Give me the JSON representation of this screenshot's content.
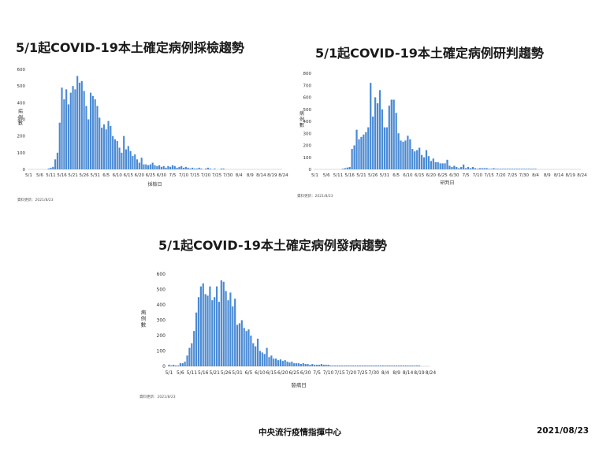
{
  "footer": {
    "org": "中央流行疫情指揮中心",
    "date": "2021/08/23"
  },
  "chart_data": [
    {
      "type": "bar",
      "title": "5/1起COVID-19本土確定病例採檢趨勢",
      "xlabel": "採檢日",
      "ylabel": "病例數",
      "ylim": [
        0,
        600
      ],
      "yticks": [
        0,
        100,
        200,
        300,
        400,
        500,
        600
      ],
      "xticks": [
        "5/1",
        "5/6",
        "5/11",
        "5/16",
        "5/21",
        "5/26",
        "5/31",
        "6/5",
        "6/10",
        "6/15",
        "6/20",
        "6/25",
        "6/30",
        "7/5",
        "7/10",
        "7/15",
        "7/20",
        "7/25",
        "7/30",
        "8/4",
        "8/9",
        "8/14",
        "8/19",
        "8/24"
      ],
      "note": "資料更新：2021/8/23",
      "color": "#4a8ad4",
      "values": [
        0,
        0,
        0,
        0,
        0,
        0,
        0,
        0,
        0,
        5,
        10,
        15,
        60,
        100,
        280,
        490,
        420,
        480,
        390,
        460,
        500,
        480,
        560,
        520,
        530,
        470,
        380,
        300,
        460,
        440,
        420,
        380,
        310,
        250,
        270,
        240,
        290,
        260,
        200,
        180,
        170,
        130,
        100,
        200,
        120,
        140,
        110,
        80,
        90,
        60,
        40,
        70,
        30,
        30,
        25,
        30,
        40,
        25,
        20,
        25,
        15,
        20,
        10,
        20,
        15,
        25,
        20,
        10,
        15,
        20,
        10,
        15,
        10,
        5,
        10,
        5,
        5,
        10,
        5,
        0,
        5,
        10,
        5,
        0,
        5,
        0,
        0,
        5,
        5,
        0,
        0,
        0,
        0,
        0,
        0,
        0,
        0,
        0,
        0,
        0,
        0,
        0,
        0,
        0,
        0,
        0,
        0,
        0,
        0,
        0,
        0,
        0,
        0,
        0,
        0
      ]
    },
    {
      "type": "bar",
      "title": "5/1起COVID-19本土確定病例研判趨勢",
      "xlabel": "研判日",
      "ylabel": "病例數",
      "ylim": [
        0,
        800
      ],
      "yticks": [
        0,
        100,
        200,
        300,
        400,
        500,
        600,
        700,
        800
      ],
      "xticks": [
        "5/1",
        "5/6",
        "5/11",
        "5/16",
        "5/21",
        "5/26",
        "5/31",
        "6/5",
        "6/10",
        "6/15",
        "6/20",
        "6/25",
        "6/30",
        "7/5",
        "7/10",
        "7/15",
        "7/20",
        "7/25",
        "7/30",
        "8/4",
        "8/9",
        "8/14",
        "8/19",
        "8/24"
      ],
      "note": "資料更新：2021/8/23",
      "color": "#4a8ad4",
      "values": [
        0,
        0,
        0,
        0,
        0,
        0,
        0,
        0,
        0,
        0,
        0,
        0,
        5,
        10,
        15,
        20,
        170,
        200,
        330,
        250,
        270,
        290,
        310,
        350,
        720,
        440,
        600,
        550,
        660,
        500,
        350,
        350,
        530,
        580,
        580,
        470,
        300,
        240,
        230,
        240,
        280,
        250,
        170,
        150,
        160,
        180,
        120,
        100,
        160,
        110,
        70,
        90,
        60,
        60,
        50,
        50,
        50,
        80,
        30,
        20,
        30,
        20,
        10,
        20,
        40,
        10,
        20,
        10,
        20,
        10,
        5,
        10,
        10,
        10,
        10,
        5,
        5,
        10,
        5,
        5,
        5,
        5,
        5,
        5,
        5,
        5,
        5,
        5,
        5,
        5,
        5,
        5,
        5,
        5,
        5,
        5,
        0,
        0,
        0,
        0,
        0,
        0,
        0,
        0,
        0,
        0,
        0,
        0,
        0,
        0,
        0,
        0,
        0,
        0,
        0
      ]
    },
    {
      "type": "bar",
      "title": "5/1起COVID-19本土確定病例發病趨勢",
      "xlabel": "發病日",
      "ylabel": "病例數",
      "ylim": [
        0,
        600
      ],
      "yticks": [
        0,
        100,
        200,
        300,
        400,
        500,
        600
      ],
      "xticks": [
        "5/1",
        "5/6",
        "5/11",
        "5/16",
        "5/21",
        "5/26",
        "5/31",
        "6/5",
        "6/10",
        "6/15",
        "6/20",
        "6/25",
        "6/30",
        "7/5",
        "7/10",
        "7/15",
        "7/20",
        "7/25",
        "7/30",
        "8/4",
        "8/9",
        "8/14",
        "8/19",
        "8/24"
      ],
      "note": "資料更新：2021/8/23",
      "color": "#4a8ad4",
      "values": [
        10,
        5,
        10,
        5,
        5,
        20,
        20,
        30,
        70,
        120,
        150,
        230,
        350,
        450,
        520,
        540,
        470,
        460,
        520,
        430,
        450,
        520,
        420,
        560,
        550,
        490,
        430,
        480,
        390,
        440,
        270,
        280,
        300,
        250,
        230,
        240,
        200,
        150,
        130,
        180,
        100,
        90,
        80,
        120,
        60,
        70,
        50,
        50,
        40,
        45,
        35,
        40,
        30,
        25,
        30,
        20,
        20,
        20,
        15,
        20,
        15,
        15,
        10,
        15,
        10,
        10,
        10,
        15,
        10,
        10,
        10,
        5,
        5,
        5,
        5,
        5,
        5,
        5,
        5,
        5,
        5,
        5,
        5,
        5,
        5,
        5,
        5,
        5,
        5,
        5,
        5,
        5,
        5,
        5,
        5,
        5,
        5,
        5,
        5,
        5,
        5,
        5,
        5,
        5,
        5,
        5,
        5,
        5,
        5,
        5,
        5,
        0,
        0,
        0,
        0
      ]
    }
  ]
}
